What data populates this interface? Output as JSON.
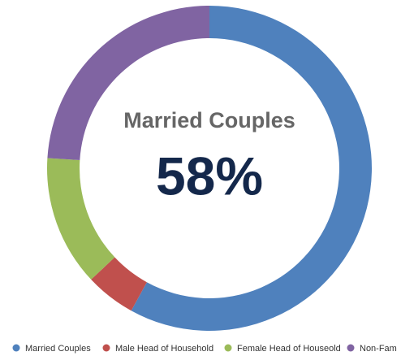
{
  "chart_data": {
    "type": "donut",
    "categories": [
      "Married Couples",
      "Male Head of Household",
      "Female Head of Houseold",
      "Non-Fam"
    ],
    "values": [
      58,
      5,
      13,
      24
    ],
    "value_labels": [
      "58%",
      null,
      null,
      null
    ],
    "colors": [
      "#4f81bd",
      "#c0504d",
      "#9bbb59",
      "#8064a2"
    ]
  }
}
